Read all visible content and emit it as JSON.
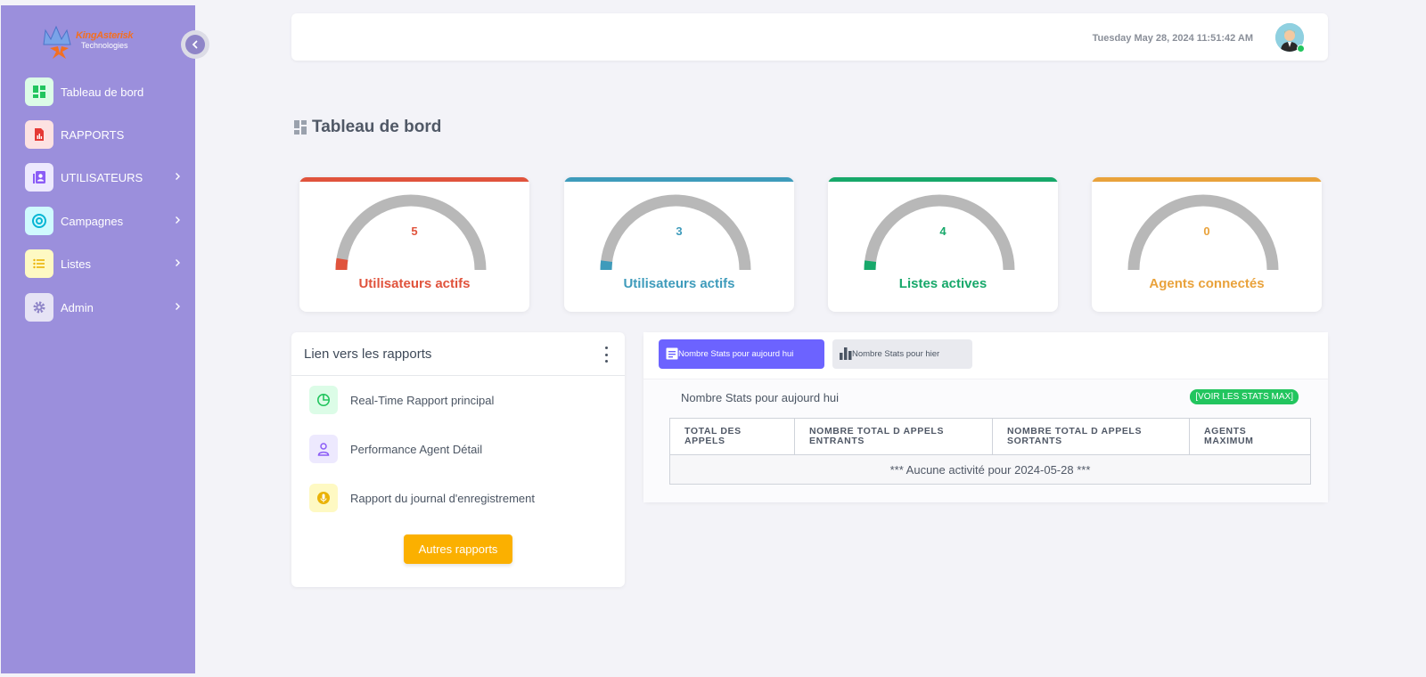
{
  "brand": {
    "name": "KingAsterisk",
    "tagline": "Technologies"
  },
  "sidebar": {
    "items": [
      {
        "label": "Tableau de bord",
        "icon": "dashboard-icon",
        "color": "#22c55e",
        "bg": "#dcfce7",
        "has_children": false
      },
      {
        "label": "RAPPORTS",
        "icon": "report-file-icon",
        "color": "#e53935",
        "bg": "#fde2e2",
        "has_children": false
      },
      {
        "label": "UTILISATEURS",
        "icon": "contacts-icon",
        "color": "#8b5cf6",
        "bg": "#ede9fe",
        "has_children": true
      },
      {
        "label": "Campagnes",
        "icon": "target-icon",
        "color": "#06b6d4",
        "bg": "#cffafe",
        "has_children": true
      },
      {
        "label": "Listes",
        "icon": "list-icon",
        "color": "#eab308",
        "bg": "#fef9c3",
        "has_children": true
      },
      {
        "label": "Admin",
        "icon": "gear-icon",
        "color": "#8f85c8",
        "bg": "#e6e3f5",
        "has_children": true
      }
    ]
  },
  "header": {
    "datetime": "Tuesday May 28, 2024 11:51:42 AM"
  },
  "page": {
    "title": "Tableau de bord"
  },
  "gauges": [
    {
      "value": "5",
      "label": "Utilisateurs actifs",
      "color": "#e0533c",
      "fraction": 0.05
    },
    {
      "value": "3",
      "label": "Utilisateurs actifs",
      "color": "#3e9bbb",
      "fraction": 0.04
    },
    {
      "value": "4",
      "label": "Listes actives",
      "color": "#17a86a",
      "fraction": 0.04
    },
    {
      "value": "0",
      "label": "Agents connectés",
      "color": "#e9a23b",
      "fraction": 0
    }
  ],
  "reports": {
    "title": "Lien vers les rapports",
    "items": [
      {
        "label": "Real-Time Rapport principal",
        "icon": "pie-chart-icon",
        "color": "#22c55e",
        "bg": "#dcfce7"
      },
      {
        "label": "Performance Agent Détail",
        "icon": "user-icon",
        "color": "#8b5cf6",
        "bg": "#ede9fe"
      },
      {
        "label": "Rapport du journal d'enregistrement",
        "icon": "microphone-icon",
        "color": "#eab308",
        "bg": "#fef9c3"
      }
    ],
    "more_button": "Autres rapports"
  },
  "stats": {
    "tabs": {
      "today": "Nombre Stats pour aujourd hui",
      "yesterday": "Nombre Stats pour hier"
    },
    "caption": "Nombre Stats pour aujourd hui",
    "max_badge": "[VOIR LES STATS MAX]",
    "columns": [
      "TOTAL DES APPELS",
      "NOMBRE TOTAL D APPELS ENTRANTS",
      "NOMBRE TOTAL D APPELS SORTANTS",
      "AGENTS MAXIMUM"
    ],
    "empty_message": "*** Aucune activité pour 2024-05-28 ***"
  }
}
